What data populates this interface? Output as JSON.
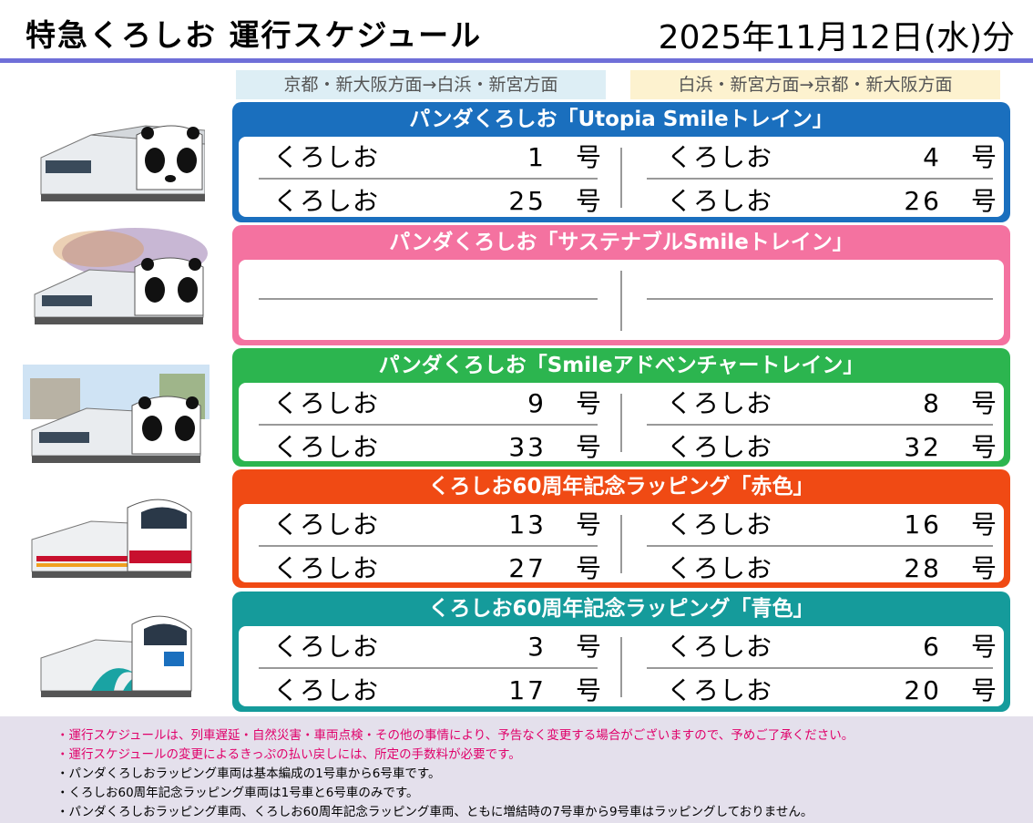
{
  "header": {
    "title": "特急くろしお 運行スケジュール",
    "date": "2025年11月12日(水)分"
  },
  "directions": {
    "left": "京都・新大阪方面→白浜・新宮方面",
    "right": "白浜・新宮方面→京都・新大阪方面"
  },
  "bands": [
    {
      "title": "パンダくろしお「Utopia Smileトレイン」",
      "color": "#1a6fbe",
      "train_icon": "panda-train-icon",
      "left": [
        {
          "name": "くろしお",
          "number": "1",
          "suffix": "号"
        },
        {
          "name": "くろしお",
          "number": "25",
          "suffix": "号"
        }
      ],
      "right": [
        {
          "name": "くろしお",
          "number": "4",
          "suffix": "号"
        },
        {
          "name": "くろしお",
          "number": "26",
          "suffix": "号"
        }
      ]
    },
    {
      "title": "パンダくろしお「サステナブルSmileトレイン」",
      "color": "#f472a0",
      "train_icon": "panda-train-icon",
      "left": [],
      "right": []
    },
    {
      "title": "パンダくろしお「Smileアドベンチャートレイン」",
      "color": "#2cb54f",
      "train_icon": "panda-train-icon",
      "left": [
        {
          "name": "くろしお",
          "number": "9",
          "suffix": "号"
        },
        {
          "name": "くろしお",
          "number": "33",
          "suffix": "号"
        }
      ],
      "right": [
        {
          "name": "くろしお",
          "number": "8",
          "suffix": "号"
        },
        {
          "name": "くろしお",
          "number": "32",
          "suffix": "号"
        }
      ]
    },
    {
      "title": "くろしお60周年記念ラッピング「赤色」",
      "color": "#f04a14",
      "train_icon": "red-wrapped-train-icon",
      "left": [
        {
          "name": "くろしお",
          "number": "13",
          "suffix": "号"
        },
        {
          "name": "くろしお",
          "number": "27",
          "suffix": "号"
        }
      ],
      "right": [
        {
          "name": "くろしお",
          "number": "16",
          "suffix": "号"
        },
        {
          "name": "くろしお",
          "number": "28",
          "suffix": "号"
        }
      ]
    },
    {
      "title": "くろしお60周年記念ラッピング「青色」",
      "color": "#159b9b",
      "train_icon": "blue-wrapped-train-icon",
      "left": [
        {
          "name": "くろしお",
          "number": "3",
          "suffix": "号"
        },
        {
          "name": "くろしお",
          "number": "17",
          "suffix": "号"
        }
      ],
      "right": [
        {
          "name": "くろしお",
          "number": "6",
          "suffix": "号"
        },
        {
          "name": "くろしお",
          "number": "20",
          "suffix": "号"
        }
      ]
    }
  ],
  "notes": [
    {
      "text": "・運行スケジュールは、列車遅延・自然災害・車両点検・その他の事情により、予告なく変更する場合がございますので、予めご了承ください。",
      "color": "#e0006a"
    },
    {
      "text": "・運行スケジュールの変更によるきっぷの払い戻しには、所定の手数料が必要です。",
      "color": "#e0006a"
    },
    {
      "text": "・パンダくろしおラッピング車両は基本編成の1号車から6号車です。",
      "color": "#000000"
    },
    {
      "text": "・くろしお60周年記念ラッピング車両は1号車と6号車のみです。",
      "color": "#000000"
    },
    {
      "text": "・パンダくろしおラッピング車両、くろしお60周年記念ラッピング車両、ともに増結時の7号車から9号車はラッピングしておりません。",
      "color": "#000000"
    }
  ]
}
